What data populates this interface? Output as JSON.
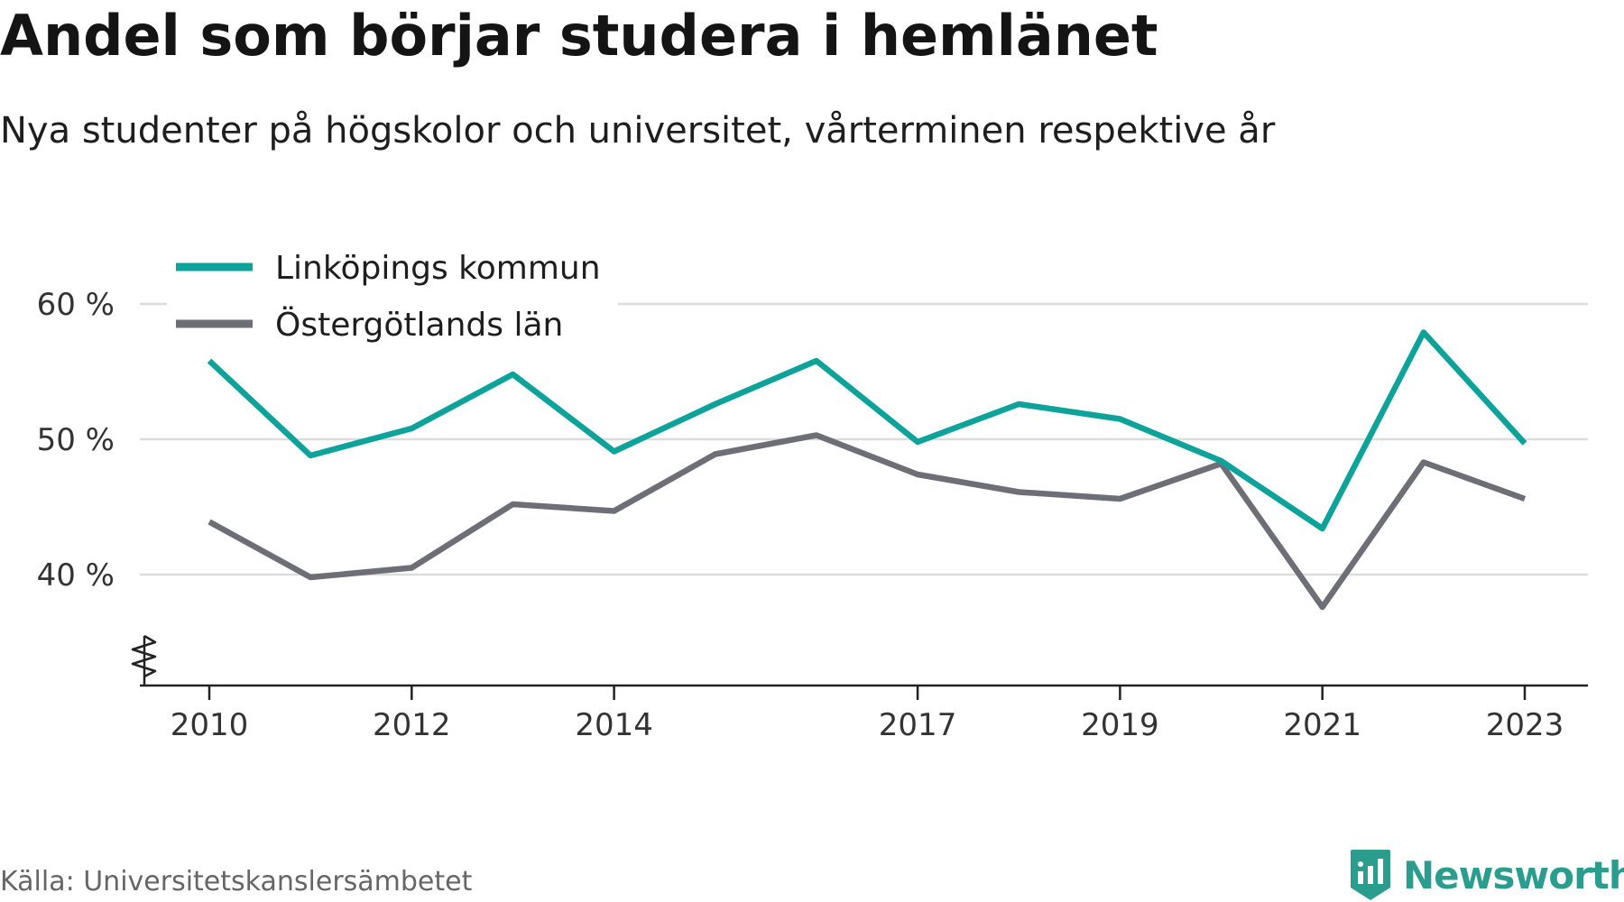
{
  "header": {
    "title": "Andel som börjar studera i hemlänet",
    "subtitle": "Nya studenter på högskolor och universitet, vårterminen respektive år"
  },
  "footer": {
    "source": "Källa: Universitetskanslersämbetet",
    "brand": "Newsworthy",
    "brand_icon": "bar-chart-icon",
    "brand_color": "#2a9d8f"
  },
  "chart_data": {
    "type": "line",
    "title": "Andel som börjar studera i hemlänet",
    "subtitle": "Nya studenter på högskolor och universitet, vårterminen respektive år",
    "xlabel": "",
    "ylabel": "",
    "x": [
      2010,
      2011,
      2012,
      2013,
      2014,
      2015,
      2016,
      2017,
      2018,
      2019,
      2020,
      2021,
      2022,
      2023
    ],
    "xticks": [
      "2010",
      "2012",
      "2014",
      "2017",
      "2019",
      "2021",
      "2023"
    ],
    "yticks": [
      "40 %",
      "50 %",
      "60 %"
    ],
    "ylim": [
      32,
      62
    ],
    "y_axis_break": true,
    "grid": true,
    "legend_position": "top-left",
    "series": [
      {
        "name": "Linköpings kommun",
        "color": "#0ea39a",
        "values": [
          55.8,
          48.8,
          50.8,
          54.8,
          49.1,
          52.6,
          55.8,
          49.8,
          52.6,
          51.5,
          48.4,
          43.4,
          57.9,
          49.7
        ]
      },
      {
        "name": "Östergötlands län",
        "color": "#6e6e76",
        "values": [
          43.9,
          39.8,
          40.5,
          45.2,
          44.7,
          48.9,
          50.3,
          47.4,
          46.1,
          45.6,
          48.2,
          37.6,
          48.3,
          45.6
        ]
      }
    ]
  }
}
